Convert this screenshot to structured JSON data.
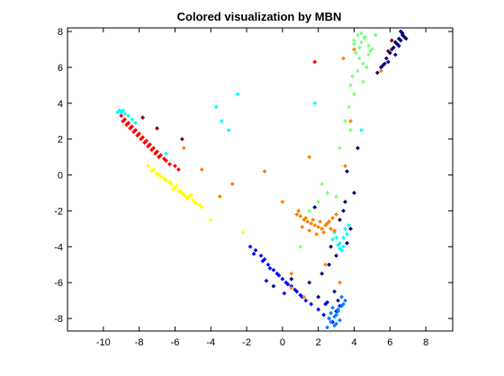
{
  "chart_data": {
    "type": "scatter",
    "title": "Colored visualization by MBN",
    "xlabel": "",
    "ylabel": "",
    "xlim": [
      -12,
      9.5
    ],
    "ylim": [
      -8.7,
      8.2
    ],
    "xticks": [
      -10,
      -8,
      -6,
      -4,
      -2,
      0,
      2,
      4,
      6,
      8
    ],
    "yticks": [
      -8,
      -6,
      -4,
      -2,
      0,
      2,
      4,
      6,
      8
    ],
    "xtick_labels": [
      "-10",
      "-8",
      "-6",
      "-4",
      "-2",
      "0",
      "2",
      "4",
      "6",
      "8"
    ],
    "ytick_labels": [
      "-8",
      "-6",
      "-4",
      "-2",
      "0",
      "2",
      "4",
      "6",
      "8"
    ],
    "grid": false,
    "legend": "none",
    "marker": "diamond",
    "colors": [
      "#00007f",
      "#0000ff",
      "#0080ff",
      "#00ffff",
      "#80ff80",
      "#ffff00",
      "#ff8000",
      "#ff0000",
      "#800000"
    ],
    "series": [
      {
        "color": "#00007f",
        "x": [
          6.6,
          6.7,
          6.5,
          6.3,
          6.2,
          6.0,
          5.8,
          5.7,
          5.5,
          5.3,
          6.8,
          6.4,
          6.1,
          5.9,
          6.6,
          6.7,
          6.9,
          5.6,
          6.3,
          6.5,
          3.5,
          3.2,
          3.8,
          3.0,
          2.6,
          2.2,
          1.5,
          2.9,
          3.6,
          3.4,
          4.0,
          0.5,
          2.0,
          2.4,
          3.1,
          1.8,
          3.6,
          4.2,
          2.7,
          -0.5
        ],
        "y": [
          8.0,
          7.8,
          7.6,
          7.4,
          7.1,
          6.8,
          6.5,
          6.2,
          6.0,
          5.7,
          7.7,
          7.3,
          7.0,
          6.3,
          7.5,
          7.9,
          7.6,
          6.1,
          6.7,
          7.2,
          -1.5,
          -2.5,
          -3.0,
          -4.5,
          -5.0,
          -5.5,
          -6.0,
          -6.5,
          -3.8,
          -2.0,
          -1.0,
          -5.8,
          -6.8,
          -7.2,
          -7.0,
          -1.8,
          0.2,
          1.5,
          -4.0,
          -6.2
        ]
      },
      {
        "color": "#0000ff",
        "x": [
          -1.8,
          -1.5,
          -1.2,
          -1.0,
          -0.8,
          -0.5,
          -0.3,
          0.0,
          0.2,
          0.5,
          0.8,
          1.0,
          1.3,
          -1.6,
          -1.1,
          -0.7,
          -0.2,
          0.3,
          0.7,
          1.1,
          1.6,
          2.0,
          2.3,
          2.6,
          2.8,
          3.0,
          3.2,
          2.5,
          -0.9,
          0.1
        ],
        "y": [
          -4.0,
          -4.2,
          -4.5,
          -4.7,
          -5.0,
          -5.3,
          -5.5,
          -5.8,
          -6.0,
          -6.2,
          -6.5,
          -6.7,
          -7.0,
          -4.4,
          -4.8,
          -5.2,
          -5.6,
          -6.1,
          -6.4,
          -6.8,
          -7.2,
          -7.5,
          -7.8,
          -8.0,
          -8.2,
          -7.6,
          -7.3,
          -7.1,
          -5.9,
          -6.6
        ]
      },
      {
        "color": "#0080ff",
        "x": [
          2.5,
          2.7,
          2.9,
          3.1,
          3.3,
          3.5,
          2.8,
          3.0,
          3.2,
          3.4,
          2.6,
          2.9,
          3.1,
          3.3,
          2.7,
          3.0
        ],
        "y": [
          -8.5,
          -8.2,
          -7.9,
          -7.6,
          -7.3,
          -7.0,
          -7.4,
          -7.8,
          -8.1,
          -7.2,
          -8.0,
          -8.4,
          -7.5,
          -6.8,
          -7.7,
          -8.3
        ]
      },
      {
        "color": "#00ffff",
        "x": [
          -9.1,
          -9.0,
          -8.8,
          -8.6,
          -8.4,
          -8.2,
          -9.2,
          -8.9,
          -3.7,
          -3.4,
          -2.5,
          -3.0,
          3.0,
          3.2,
          3.4,
          3.6,
          2.8,
          3.3,
          3.5,
          3.1,
          3.7,
          2.9,
          3.4,
          3.2,
          -6.5,
          1.8,
          4.4
        ],
        "y": [
          3.6,
          3.5,
          3.4,
          3.3,
          3.1,
          2.9,
          3.5,
          3.6,
          3.8,
          3.0,
          4.5,
          2.5,
          -3.5,
          -3.8,
          -4.0,
          -3.3,
          -3.6,
          -4.2,
          -3.0,
          -3.9,
          -2.8,
          -3.2,
          -3.5,
          -4.1,
          1.2,
          4.0,
          2.5
        ]
      },
      {
        "color": "#80ff80",
        "x": [
          4.0,
          4.2,
          4.4,
          4.6,
          4.8,
          5.0,
          4.1,
          4.3,
          4.5,
          4.7,
          4.9,
          3.9,
          4.2,
          4.4,
          4.6,
          3.8,
          4.0,
          4.5,
          3.5,
          3.7,
          3.2,
          2.5,
          2.0,
          1.5,
          3.0,
          2.2,
          1.0,
          3.8,
          4.0,
          4.3,
          5.2,
          4.8
        ],
        "y": [
          7.5,
          7.8,
          7.9,
          7.6,
          7.2,
          7.0,
          6.8,
          6.5,
          6.2,
          6.0,
          6.9,
          5.5,
          5.8,
          7.4,
          7.7,
          5.0,
          4.5,
          5.2,
          3.0,
          3.8,
          1.5,
          -1.0,
          -1.5,
          -2.0,
          -1.2,
          -0.5,
          -4.0,
          2.5,
          7.3,
          7.1,
          7.8,
          6.7
        ]
      },
      {
        "color": "#ffff00",
        "x": [
          -7.5,
          -7.2,
          -7.0,
          -6.8,
          -6.5,
          -6.2,
          -6.0,
          -5.8,
          -5.5,
          -5.2,
          -5.0,
          -4.8,
          -4.5,
          -7.3,
          -6.9,
          -6.6,
          -6.3,
          -5.9,
          -5.6,
          -5.3,
          -4.9,
          -4.6,
          -6.1,
          -5.7,
          -5.4,
          -4.0,
          -2.2,
          -5.1
        ],
        "y": [
          0.5,
          0.3,
          0.1,
          -0.1,
          -0.3,
          -0.5,
          -0.7,
          -0.9,
          -1.1,
          -1.2,
          -1.4,
          -1.6,
          -1.8,
          0.2,
          0.0,
          -0.2,
          -0.4,
          -0.6,
          -1.0,
          -1.3,
          -1.5,
          -1.7,
          -0.8,
          -0.9,
          -1.2,
          -2.5,
          -3.2,
          -1.1
        ]
      },
      {
        "color": "#ff8000",
        "x": [
          0.8,
          1.0,
          1.2,
          1.4,
          1.6,
          1.8,
          2.0,
          2.2,
          2.4,
          2.6,
          2.8,
          3.0,
          1.1,
          1.5,
          1.9,
          2.3,
          2.7,
          0.9,
          1.3,
          1.7,
          2.1,
          2.5,
          2.9,
          -3.5,
          -2.8,
          -1.0,
          0.0,
          3.8,
          5.5,
          3.5,
          1.5,
          0.5,
          2.4,
          3.2,
          -4.5,
          -5.5,
          0.5,
          1.2,
          3.4,
          4.0
        ],
        "y": [
          -2.2,
          -2.3,
          -2.5,
          -2.6,
          -2.7,
          -2.8,
          -2.9,
          -3.0,
          -2.8,
          -2.6,
          -2.4,
          -2.2,
          -2.9,
          -3.1,
          -3.3,
          -3.2,
          -3.0,
          -2.0,
          -2.4,
          -2.5,
          -2.6,
          -2.7,
          -3.1,
          -1.2,
          -0.5,
          0.2,
          -1.5,
          3.0,
          5.8,
          0.5,
          1.0,
          -5.5,
          -5.0,
          -6.0,
          0.3,
          1.5,
          -6.3,
          -6.8,
          6.5,
          7.0
        ]
      },
      {
        "color": "#ff0000",
        "x": [
          -9.0,
          -8.8,
          -8.6,
          -8.4,
          -8.2,
          -8.0,
          -7.8,
          -7.6,
          -7.4,
          -7.2,
          -7.0,
          -6.8,
          -6.6,
          -8.9,
          -8.5,
          -8.1,
          -7.7,
          -7.3,
          -6.9,
          -6.5,
          -6.3,
          -8.7,
          -8.3,
          -7.9,
          -7.5,
          -7.1,
          1.8,
          -6.0,
          -5.8
        ],
        "y": [
          3.3,
          3.1,
          2.9,
          2.7,
          2.5,
          2.3,
          2.1,
          1.9,
          1.7,
          1.5,
          1.3,
          1.1,
          0.9,
          3.0,
          2.6,
          2.2,
          1.8,
          1.4,
          1.0,
          0.8,
          0.6,
          2.8,
          2.4,
          2.0,
          1.6,
          1.2,
          6.3,
          0.5,
          0.3
        ]
      },
      {
        "color": "#800000",
        "x": [
          -7.8,
          -7.0,
          -5.6,
          5.9,
          6.1
        ],
        "y": [
          3.2,
          2.6,
          2.0,
          6.9,
          7.5
        ]
      }
    ]
  }
}
